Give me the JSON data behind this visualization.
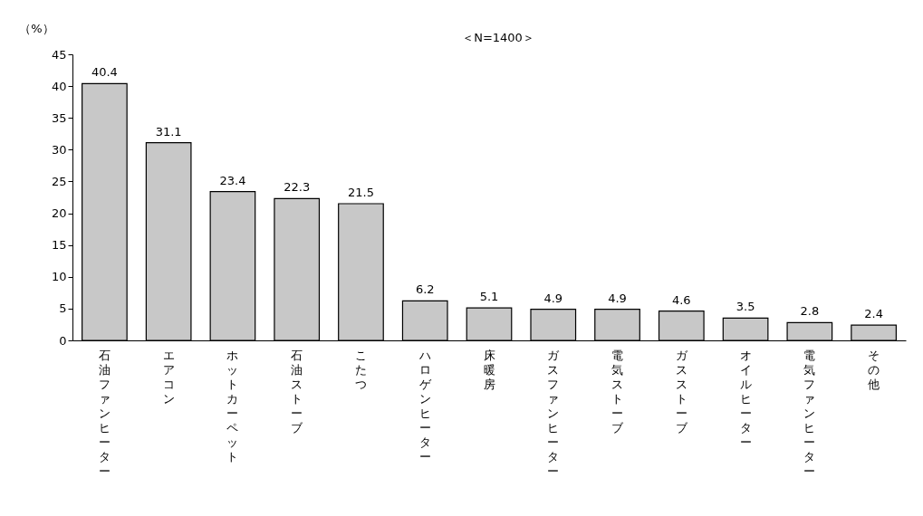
{
  "chart_data": {
    "type": "bar",
    "ylabel": "（%）",
    "annotations": [
      "＜N=1400＞"
    ],
    "categories": [
      "石油ファンヒーター",
      "エアコン",
      "ホットカーペット",
      "石油ストーブ",
      "こたつ",
      "ハロゲンヒーター",
      "床暖房",
      "ガスファンヒーター",
      "電気ストーブ",
      "ガスストーブ",
      "オイルヒーター",
      "電気ファンヒーター",
      "その他"
    ],
    "values": [
      40.4,
      31.1,
      23.4,
      22.3,
      21.5,
      6.2,
      5.1,
      4.9,
      4.9,
      4.6,
      3.5,
      2.8,
      2.4
    ],
    "color": "#c8c8c8",
    "ylim": [
      0,
      45
    ],
    "yticks": [
      0,
      5,
      10,
      15,
      20,
      25,
      30,
      35,
      40,
      45
    ],
    "grid": false,
    "data_labels": true
  }
}
